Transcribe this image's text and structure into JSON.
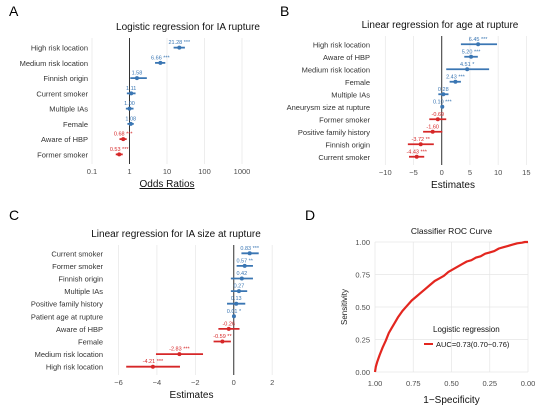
{
  "chart_data": [
    {
      "panel": "A",
      "type": "forest",
      "title": "Logistic regression for IA rupture",
      "xlabel": "Odds Ratios",
      "xscale": "log",
      "xlim": [
        0.1,
        1000
      ],
      "xticks": [
        0.1,
        1,
        10,
        100,
        1000
      ],
      "xtick_labels": [
        "0.1",
        "1",
        "10",
        "100",
        "1000"
      ],
      "reference": 1,
      "categories": [
        "High risk location",
        "Medium risk location",
        "Finnish origin",
        "Current smoker",
        "Multiple IAs",
        "Female",
        "Aware of HBP",
        "Former smoker"
      ],
      "values": [
        21.28,
        6.66,
        1.58,
        1.11,
        1.0,
        1.08,
        0.68,
        0.53
      ],
      "ci_low": [
        15.0,
        4.8,
        1.05,
        0.85,
        0.8,
        0.88,
        0.54,
        0.43
      ],
      "ci_high": [
        30.0,
        9.0,
        2.9,
        1.45,
        1.28,
        1.3,
        0.84,
        0.66
      ],
      "value_labels": [
        "21.28 ***",
        "6.66 ***",
        "1.58",
        "1.11",
        "1.00",
        "1.08",
        "0.68 ***",
        "0.53 ***"
      ],
      "direction": [
        "pos",
        "pos",
        "pos",
        "pos",
        "pos",
        "pos",
        "neg",
        "neg"
      ]
    },
    {
      "panel": "B",
      "type": "forest",
      "title": "Linear regression for age at rupture",
      "xlabel": "Estimates",
      "xscale": "linear",
      "xlim": [
        -12,
        16
      ],
      "xticks": [
        -10,
        -5,
        0,
        5,
        10,
        15
      ],
      "xtick_labels": [
        "−10",
        "−5",
        "0",
        "5",
        "10",
        "15"
      ],
      "reference": 0,
      "categories": [
        "High risk location",
        "Aware of HBP",
        "Medium risk location",
        "Female",
        "Multiple IAs",
        "Aneurysm size at rupture",
        "Former smoker",
        "Positive family history",
        "Finnish origin",
        "Current smoker"
      ],
      "values": [
        6.45,
        5.2,
        4.51,
        2.43,
        0.28,
        0.1,
        -0.69,
        -1.6,
        -3.72,
        -4.43
      ],
      "ci_low": [
        3.4,
        4.0,
        0.8,
        1.4,
        -0.6,
        -0.1,
        -2.2,
        -3.3,
        -6.0,
        -5.8
      ],
      "ci_high": [
        9.8,
        6.4,
        8.4,
        3.4,
        1.2,
        0.3,
        0.8,
        0.1,
        -1.4,
        -3.1
      ],
      "value_labels": [
        "6.45 ***",
        "5.20 ***",
        "4.51 *",
        "2.43 ***",
        "0.28",
        "0.10 ***",
        "-0.69",
        "-1.60",
        "-3.72 **",
        "-4.43 ***"
      ],
      "direction": [
        "pos",
        "pos",
        "pos",
        "pos",
        "pos",
        "pos",
        "neg",
        "neg",
        "neg",
        "neg"
      ]
    },
    {
      "panel": "C",
      "type": "forest",
      "title": "Linear regression for IA size at rupture",
      "xlabel": "Estimates",
      "xscale": "linear",
      "xlim": [
        -6.6,
        2.2
      ],
      "xticks": [
        -6,
        -4,
        -2,
        0,
        2
      ],
      "xtick_labels": [
        "−6",
        "−4",
        "−2",
        "0",
        "2"
      ],
      "reference": 0,
      "categories": [
        "Current smoker",
        "Former smoker",
        "Finnish origin",
        "Multiple IAs",
        "Positive family history",
        "Patient age at rupture",
        "Aware of HBP",
        "Female",
        "Medium risk location",
        "High risk location"
      ],
      "values": [
        0.83,
        0.57,
        0.42,
        0.27,
        0.13,
        0.01,
        -0.26,
        -0.59,
        -2.83,
        -4.21
      ],
      "ci_low": [
        0.4,
        0.15,
        -0.15,
        -0.15,
        -0.35,
        -0.01,
        -0.8,
        -1.05,
        -4.05,
        -5.6
      ],
      "ci_high": [
        1.3,
        1.0,
        1.0,
        0.7,
        0.6,
        0.03,
        0.3,
        -0.15,
        -1.6,
        -2.8
      ],
      "value_labels": [
        "0.83 ***",
        "0.57 **",
        "0.42",
        "0.27",
        "0.13",
        "0.01 *",
        "-0.26",
        "-0.59 **",
        "-2.83 ***",
        "-4.21 ***"
      ],
      "direction": [
        "pos",
        "pos",
        "pos",
        "pos",
        "pos",
        "pos",
        "neg",
        "neg",
        "neg",
        "neg"
      ]
    },
    {
      "panel": "D",
      "type": "line",
      "title": "Classifier ROC Curve",
      "xlabel": "1−Specificity",
      "ylabel": "Sensitivity",
      "xlim": [
        1.0,
        0.0
      ],
      "ylim": [
        0,
        1
      ],
      "xticks": [
        1.0,
        0.75,
        0.5,
        0.25,
        0.0
      ],
      "xtick_labels": [
        "1.00",
        "0.75",
        "0.50",
        "0.25",
        "0.00"
      ],
      "yticks": [
        0,
        0.25,
        0.5,
        0.75,
        1.0
      ],
      "ytick_labels": [
        "0.00",
        "0.25",
        "0.50",
        "0.75",
        "1.00"
      ],
      "legend_title": "Logistic regression",
      "legend_position": "inside-bottom-right",
      "series": [
        {
          "name": "AUC=0.73(0.70−0.76)",
          "x": [
            1.0,
            0.995,
            0.985,
            0.97,
            0.95,
            0.93,
            0.91,
            0.89,
            0.87,
            0.85,
            0.82,
            0.79,
            0.76,
            0.73,
            0.7,
            0.67,
            0.64,
            0.61,
            0.58,
            0.55,
            0.52,
            0.49,
            0.46,
            0.43,
            0.4,
            0.37,
            0.34,
            0.31,
            0.28,
            0.25,
            0.22,
            0.19,
            0.16,
            0.13,
            0.1,
            0.07,
            0.04,
            0.02,
            0.0
          ],
          "y": [
            0.0,
            0.04,
            0.08,
            0.13,
            0.19,
            0.24,
            0.3,
            0.34,
            0.38,
            0.42,
            0.47,
            0.51,
            0.55,
            0.58,
            0.61,
            0.64,
            0.67,
            0.7,
            0.72,
            0.74,
            0.77,
            0.79,
            0.81,
            0.83,
            0.85,
            0.86,
            0.88,
            0.89,
            0.91,
            0.92,
            0.93,
            0.95,
            0.96,
            0.97,
            0.98,
            0.99,
            0.995,
            1.0,
            1.0
          ]
        }
      ]
    }
  ],
  "panels": {
    "A": {
      "letter": "A"
    },
    "B": {
      "letter": "B"
    },
    "C": {
      "letter": "C"
    },
    "D": {
      "letter": "D"
    }
  },
  "colors": {
    "positive": "#3a76b3",
    "negative": "#d62728",
    "roc": "#e3261f",
    "reference": "#333333",
    "grid": "#e6e6e6",
    "axis_text": "#4d4d4d"
  }
}
